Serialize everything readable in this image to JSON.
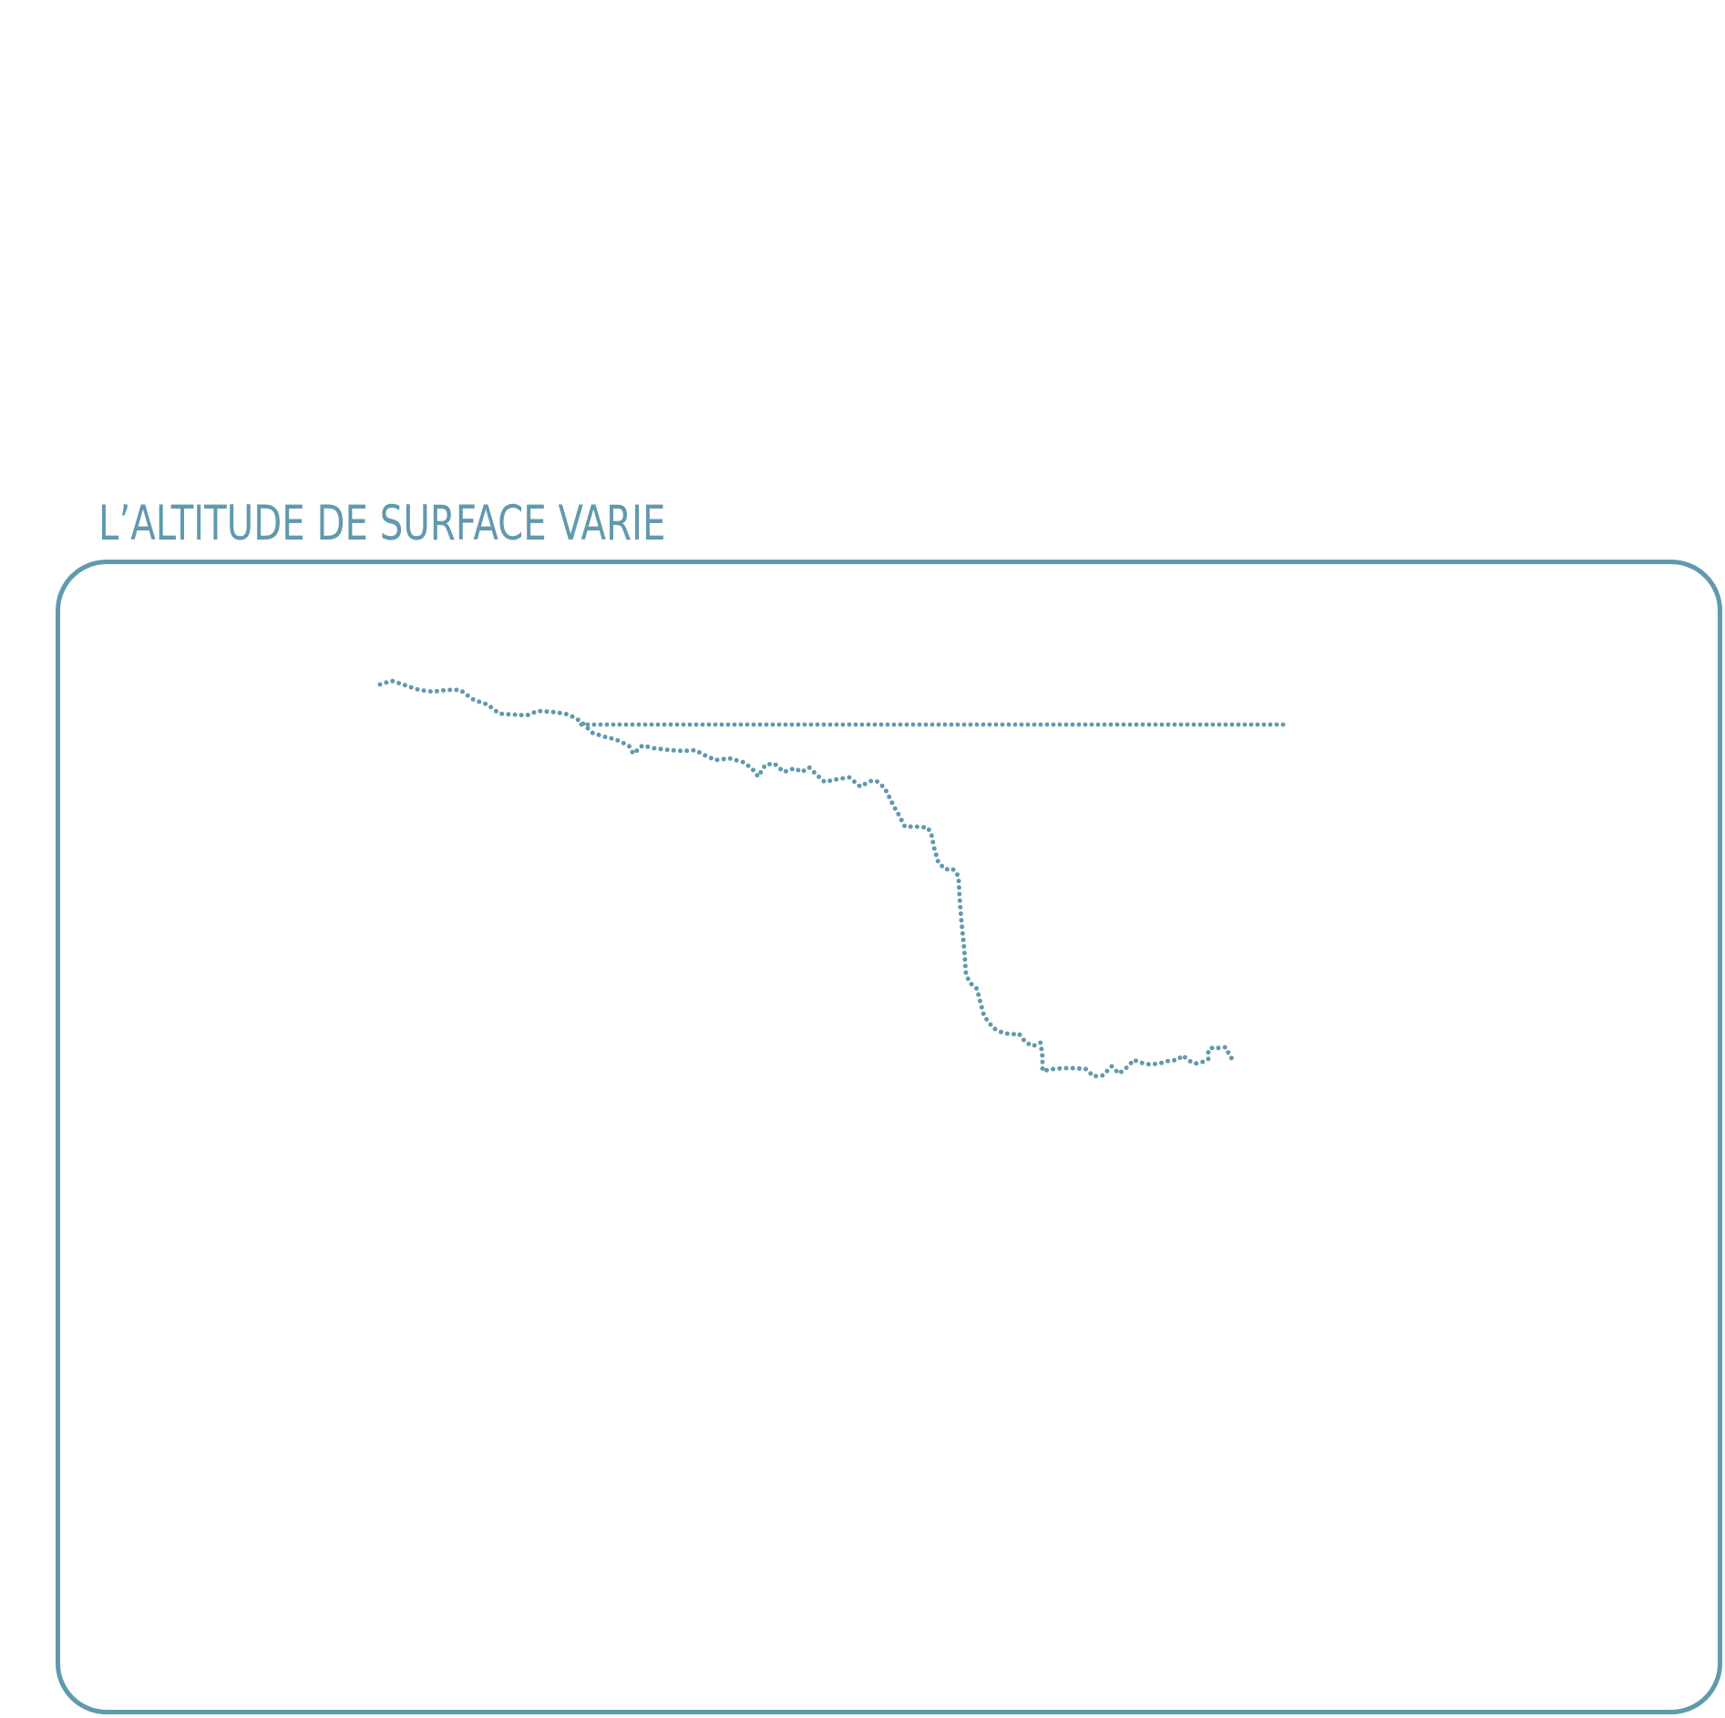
{
  "title": "L’ALTITUDE DE SURFACE VARIE",
  "colors": {
    "accent": "#6199ae",
    "background": "#ffffff"
  },
  "diagram": {
    "reference_line": "horizontal dotted reference level",
    "surface_profile": "dotted surface altitude profile descending from upper left to lower right"
  }
}
